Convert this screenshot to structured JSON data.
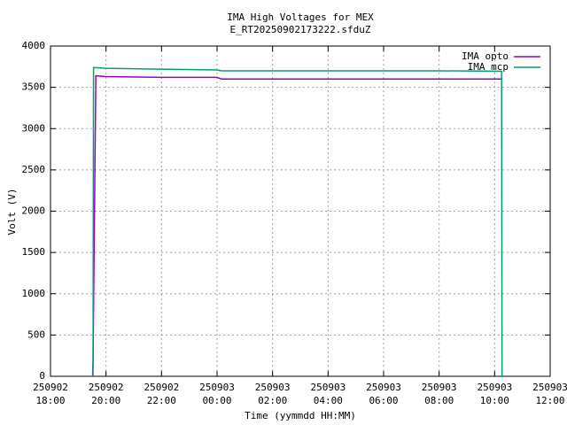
{
  "chart_data": {
    "type": "line",
    "title": "IMA High Voltages for MEX",
    "subtitle": "E_RT20250902173222.sfduZ",
    "xlabel": "Time (yymmdd HH:MM)",
    "ylabel": "Volt (V)",
    "xlim": [
      "250902 18:00",
      "250903 12:00"
    ],
    "xticks": [
      "250902 18:00",
      "250902 20:00",
      "250902 22:00",
      "250903 00:00",
      "250903 02:00",
      "250903 04:00",
      "250903 06:00",
      "250903 08:00",
      "250903 10:00",
      "250903 12:00"
    ],
    "ylim": [
      0,
      4000
    ],
    "yticks": [
      0,
      500,
      1000,
      1500,
      2000,
      2500,
      3000,
      3500,
      4000
    ],
    "grid": true,
    "legend": "top-right",
    "series": [
      {
        "name": "IMA opto",
        "color": "#9400d3",
        "x": [
          "250902 19:31",
          "250902 19:32",
          "250902 19:38",
          "250902 20:00",
          "250902 22:00",
          "250903 00:00",
          "250903 00:10",
          "250903 04:00",
          "250903 08:00",
          "250903 10:15"
        ],
        "values": [
          0,
          200,
          3640,
          3630,
          3620,
          3620,
          3600,
          3600,
          3600,
          3600
        ]
      },
      {
        "name": "IMA mcp",
        "color": "#009e73",
        "x": [
          "250902 19:32",
          "250902 19:33",
          "250902 20:00",
          "250902 22:00",
          "250903 00:00",
          "250903 00:10",
          "250903 04:00",
          "250903 08:00",
          "250903 10:15",
          "250903 10:16"
        ],
        "values": [
          0,
          3740,
          3730,
          3720,
          3710,
          3700,
          3700,
          3700,
          3695,
          0
        ]
      }
    ]
  }
}
